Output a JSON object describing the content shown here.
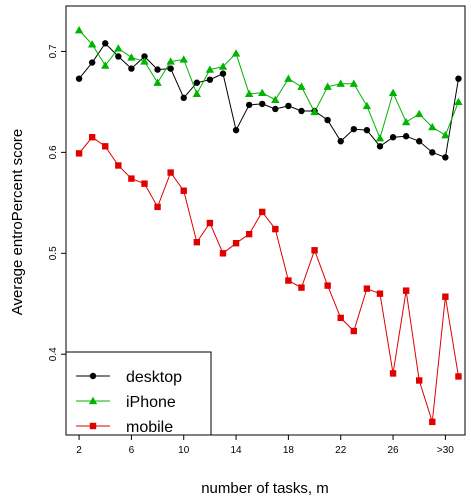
{
  "chart_data": {
    "type": "line",
    "xlabel": "number of tasks, m",
    "ylabel": "Average entroPercent score",
    "xlim": [
      1,
      31.5
    ],
    "ylim": [
      0.32,
      0.745
    ],
    "x_tick_values": [
      2,
      6,
      10,
      14,
      18,
      22,
      26,
      30
    ],
    "x_tick_labels": [
      "2",
      "6",
      "10",
      "14",
      "18",
      "22",
      "26",
      ">30"
    ],
    "y_tick_values": [
      0.4,
      0.5,
      0.6,
      0.7
    ],
    "y_tick_labels": [
      "0.4",
      "0.5",
      "0.6",
      "0.7"
    ],
    "grid": false,
    "legend_position": "bottom-left",
    "x": [
      2,
      3,
      4,
      5,
      6,
      7,
      8,
      9,
      10,
      11,
      12,
      13,
      14,
      15,
      16,
      17,
      18,
      19,
      20,
      21,
      22,
      23,
      24,
      25,
      26,
      27,
      28,
      29,
      30,
      31
    ],
    "series": [
      {
        "name": "desktop",
        "color": "#000000",
        "marker": "circle",
        "values": [
          0.673,
          0.689,
          0.708,
          0.695,
          0.683,
          0.695,
          0.682,
          0.683,
          0.654,
          0.669,
          0.672,
          0.678,
          0.622,
          0.647,
          0.648,
          0.643,
          0.646,
          0.641,
          0.641,
          0.632,
          0.611,
          0.623,
          0.622,
          0.606,
          0.615,
          0.616,
          0.611,
          0.6,
          0.595,
          0.673
        ]
      },
      {
        "name": "iPhone",
        "color": "#00b400",
        "marker": "triangle",
        "values": [
          0.721,
          0.707,
          0.686,
          0.703,
          0.694,
          0.69,
          0.669,
          0.69,
          0.692,
          0.658,
          0.682,
          0.685,
          0.698,
          0.658,
          0.659,
          0.652,
          0.673,
          0.665,
          0.64,
          0.665,
          0.668,
          0.668,
          0.646,
          0.614,
          0.659,
          0.63,
          0.638,
          0.625,
          0.617,
          0.65
        ]
      },
      {
        "name": "mobile",
        "color": "#e00000",
        "marker": "square",
        "values": [
          0.599,
          0.615,
          0.606,
          0.587,
          0.574,
          0.569,
          0.546,
          0.58,
          0.562,
          0.511,
          0.53,
          0.5,
          0.51,
          0.519,
          0.541,
          0.524,
          0.473,
          0.466,
          0.503,
          0.468,
          0.436,
          0.423,
          0.465,
          0.46,
          0.381,
          0.463,
          0.374,
          0.333,
          0.457,
          0.378
        ]
      }
    ]
  }
}
